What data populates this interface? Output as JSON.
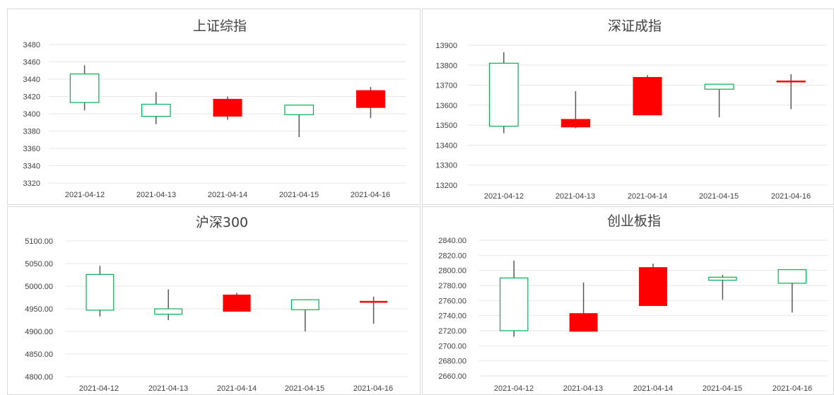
{
  "chart_data": [
    {
      "type": "candlestick",
      "title": "上证综指",
      "categories": [
        "2021-04-12",
        "2021-04-13",
        "2021-04-14",
        "2021-04-15",
        "2021-04-16"
      ],
      "ohlc": [
        {
          "open": 3446,
          "high": 3456,
          "low": 3404,
          "close": 3413
        },
        {
          "open": 3411,
          "high": 3425,
          "low": 3388,
          "close": 3397
        },
        {
          "open": 3397,
          "high": 3420,
          "low": 3393,
          "close": 3417
        },
        {
          "open": 3410,
          "high": 3410,
          "low": 3373,
          "close": 3399
        },
        {
          "open": 3407,
          "high": 3431,
          "low": 3395,
          "close": 3427
        }
      ],
      "ylim": [
        3320,
        3480
      ],
      "yticks": [
        "3480",
        "3460",
        "3440",
        "3420",
        "3400",
        "3380",
        "3360",
        "3340",
        "3320"
      ],
      "grid": true
    },
    {
      "type": "candlestick",
      "title": "深证成指",
      "categories": [
        "2021-04-12",
        "2021-04-13",
        "2021-04-14",
        "2021-04-15",
        "2021-04-16"
      ],
      "ohlc": [
        {
          "open": 13810,
          "high": 13865,
          "low": 13460,
          "close": 13495
        },
        {
          "open": 13490,
          "high": 13670,
          "low": 13485,
          "close": 13530
        },
        {
          "open": 13550,
          "high": 13750,
          "low": 13550,
          "close": 13740
        },
        {
          "open": 13705,
          "high": 13705,
          "low": 13540,
          "close": 13680
        },
        {
          "open": 13715,
          "high": 13755,
          "low": 13580,
          "close": 13722
        }
      ],
      "ylim": [
        13200,
        13900
      ],
      "yticks": [
        "13900",
        "13800",
        "13700",
        "13600",
        "13500",
        "13400",
        "13300",
        "13200"
      ],
      "grid": true
    },
    {
      "type": "candlestick",
      "title": "沪深300",
      "categories": [
        "2021-04-12",
        "2021-04-13",
        "2021-04-14",
        "2021-04-15",
        "2021-04-16"
      ],
      "ohlc": [
        {
          "open": 5026,
          "high": 5045,
          "low": 4933,
          "close": 4947
        },
        {
          "open": 4950,
          "high": 4993,
          "low": 4925,
          "close": 4938
        },
        {
          "open": 4944,
          "high": 4985,
          "low": 4944,
          "close": 4981
        },
        {
          "open": 4970,
          "high": 4970,
          "low": 4900,
          "close": 4948
        },
        {
          "open": 4965,
          "high": 4977,
          "low": 4917,
          "close": 4967
        }
      ],
      "ylim": [
        4800,
        5100
      ],
      "yticks": [
        "5100.00",
        "5050.00",
        "5000.00",
        "4950.00",
        "4900.00",
        "4850.00",
        "4800.00"
      ],
      "grid": true
    },
    {
      "type": "candlestick",
      "title": "创业板指",
      "categories": [
        "2021-04-12",
        "2021-04-13",
        "2021-04-14",
        "2021-04-15",
        "2021-04-16"
      ],
      "ohlc": [
        {
          "open": 2790,
          "high": 2813,
          "low": 2712,
          "close": 2720
        },
        {
          "open": 2719,
          "high": 2784,
          "low": 2719,
          "close": 2743
        },
        {
          "open": 2753,
          "high": 2809,
          "low": 2753,
          "close": 2804
        },
        {
          "open": 2791,
          "high": 2794,
          "low": 2761,
          "close": 2787
        },
        {
          "open": 2801,
          "high": 2801,
          "low": 2744,
          "close": 2783
        }
      ],
      "ylim": [
        2660,
        2840
      ],
      "yticks": [
        "2840.00",
        "2820.00",
        "2800.00",
        "2780.00",
        "2760.00",
        "2740.00",
        "2720.00",
        "2700.00",
        "2680.00",
        "2660.00"
      ],
      "grid": true
    }
  ],
  "colors": {
    "up": "#ff0000",
    "down_border": "#00b050",
    "wick": "#595959",
    "grid": "#e6e6e6",
    "text": "#404040"
  }
}
